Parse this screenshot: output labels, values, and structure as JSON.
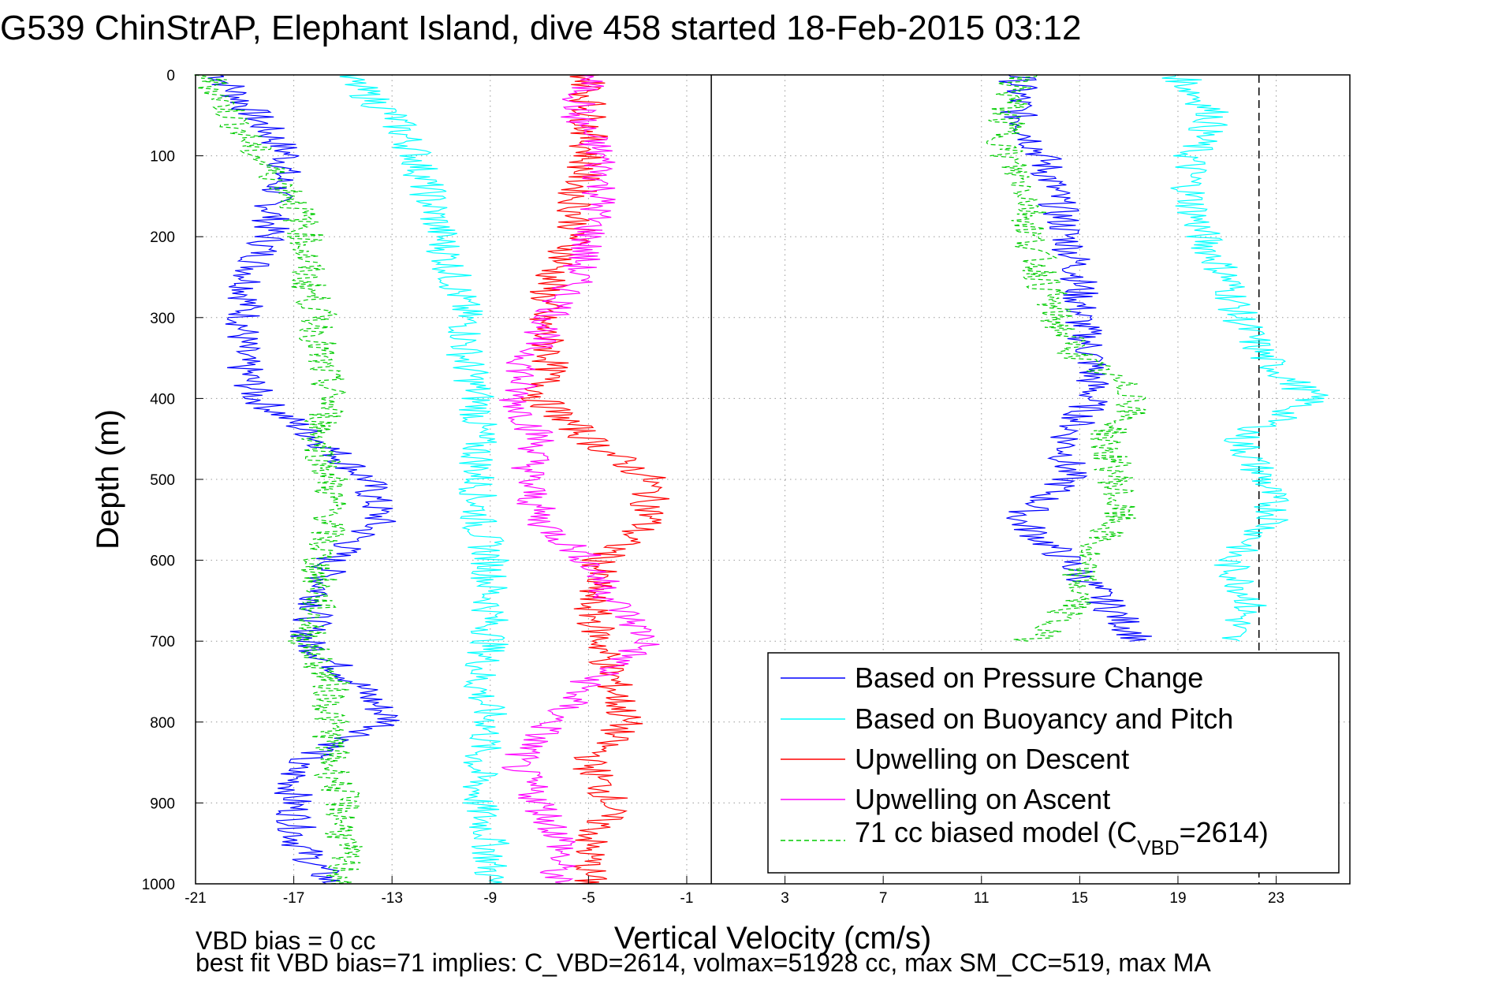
{
  "page": {
    "title": "G539 ChinStrAP, Elephant Island, dive 458 started 18-Feb-2015 03:12",
    "note_line1": "VBD bias = 0 cc",
    "note_line2": "best fit VBD bias=71 implies: C_VBD=2614, volmax=51928 cc, max SM_CC=519, max MA"
  },
  "chart_data": {
    "type": "line",
    "title": "G539 ChinStrAP, Elephant Island, dive 458 started 18-Feb-2015 03:12",
    "xlabel": "Vertical Velocity (cm/s)",
    "ylabel": "Depth (m)",
    "xlim": [
      -21,
      26
    ],
    "ylim": [
      0,
      1000
    ],
    "y_reversed": true,
    "grid": true,
    "legend_position": "bottom-right",
    "xticks": [
      -21,
      -17,
      -13,
      -9,
      -5,
      -1,
      3,
      7,
      11,
      15,
      19,
      23
    ],
    "yticks": [
      0,
      100,
      200,
      300,
      400,
      500,
      600,
      700,
      800,
      900,
      1000
    ],
    "reference_lines": [
      {
        "name": "zero",
        "x": 0,
        "style": "solid",
        "color": "#000000"
      },
      {
        "name": "limit",
        "x": 22.3,
        "style": "dashed",
        "color": "#000000"
      }
    ],
    "series": [
      {
        "name": "Based on Pressure Change",
        "color": "#0000ff",
        "style": "solid",
        "depth": [
          0,
          50,
          100,
          150,
          200,
          250,
          300,
          350,
          400,
          450,
          500,
          550,
          600,
          650,
          700,
          750,
          800,
          850,
          900,
          950,
          1000
        ],
        "descent": [
          -20,
          -18.6,
          -17.2,
          -17.8,
          -18.0,
          -18.8,
          -19.0,
          -19.2,
          -18.5,
          -16.0,
          -14.0,
          -13.5,
          -15.5,
          -16.0,
          -16.5,
          -14.5,
          -13.0,
          -17.0,
          -17.0,
          -16.8,
          -15.5
        ],
        "ascent": [
          12.5,
          12.5,
          13.5,
          14.0,
          14.5,
          15.0,
          15.0,
          15.5,
          15.5,
          14.5,
          14.5,
          12.5,
          14.5,
          16.0,
          17.5,
          null,
          null,
          null,
          null,
          null,
          null
        ]
      },
      {
        "name": "Based on Buoyancy and Pitch",
        "color": "#00ffff",
        "style": "solid",
        "depth": [
          0,
          50,
          100,
          150,
          200,
          250,
          300,
          350,
          400,
          450,
          500,
          550,
          600,
          650,
          700,
          750,
          800,
          850,
          900,
          950,
          1000
        ],
        "descent": [
          -15.0,
          -13.0,
          -12.0,
          -11.5,
          -11.0,
          -10.5,
          -10.0,
          -10.0,
          -9.5,
          -9.5,
          -9.5,
          -9.5,
          -9.0,
          -9.0,
          -9.0,
          -9.5,
          -9.0,
          -9.5,
          -9.5,
          -9.0,
          -9.0
        ],
        "ascent": [
          19.0,
          20.5,
          19.5,
          19.5,
          20.0,
          21.0,
          21.5,
          22.5,
          24.5,
          21.5,
          22.5,
          23.0,
          21.0,
          22.0,
          21.0,
          null,
          null,
          null,
          null,
          null,
          null
        ]
      },
      {
        "name": "Upwelling on Descent",
        "color": "#ff0000",
        "style": "solid",
        "depth": [
          0,
          50,
          100,
          150,
          200,
          250,
          300,
          350,
          400,
          450,
          500,
          550,
          600,
          650,
          700,
          750,
          800,
          850,
          900,
          950,
          1000
        ],
        "values": [
          -5.0,
          -5.0,
          -5.0,
          -5.5,
          -5.5,
          -6.5,
          -7.0,
          -6.5,
          -7.0,
          -5.0,
          -2.5,
          -2.5,
          -4.5,
          -5.0,
          -4.5,
          -4.0,
          -3.5,
          -5.0,
          -4.0,
          -5.0,
          -5.0
        ]
      },
      {
        "name": "Upwelling on Ascent",
        "color": "#ff00ff",
        "style": "solid",
        "depth": [
          0,
          50,
          100,
          150,
          200,
          250,
          300,
          350,
          400,
          450,
          500,
          550,
          600,
          650,
          700,
          750,
          800,
          850,
          900,
          950,
          1000
        ],
        "values": [
          -5.0,
          -5.5,
          -4.5,
          -4.5,
          -5.0,
          -5.5,
          -6.5,
          -7.5,
          -8.0,
          -7.0,
          -7.5,
          -7.0,
          -5.0,
          -4.0,
          -2.5,
          -5.0,
          -6.5,
          -8.0,
          -7.0,
          -6.0,
          -6.5
        ]
      },
      {
        "name": "71 cc biased model (C_VBD=2614)",
        "color": "#00cc00",
        "style": "dashed",
        "depth": [
          0,
          50,
          100,
          150,
          200,
          250,
          300,
          350,
          400,
          450,
          500,
          550,
          600,
          650,
          700,
          750,
          800,
          850,
          900,
          950,
          1000
        ],
        "descent": [
          -20.5,
          -19.5,
          -18.5,
          -17.0,
          -16.5,
          -16.5,
          -16.0,
          -16.0,
          -15.5,
          -16.0,
          -15.5,
          -15.5,
          -16.0,
          -16.0,
          -16.5,
          -15.5,
          -15.5,
          -15.5,
          -15.0,
          -15.0,
          -15.0
        ],
        "ascent": [
          12.5,
          12.0,
          12.0,
          13.0,
          13.0,
          13.5,
          14.0,
          15.0,
          17.5,
          16.0,
          16.5,
          16.5,
          15.0,
          15.0,
          13.0,
          null,
          null,
          null,
          null,
          null,
          null
        ]
      }
    ],
    "legend_entries": [
      "Based on Pressure Change",
      "Based on Buoyancy and Pitch",
      "Upwelling on Descent",
      "Upwelling on Ascent",
      "71 cc biased model (C",
      "VBD",
      "=2614)"
    ]
  }
}
